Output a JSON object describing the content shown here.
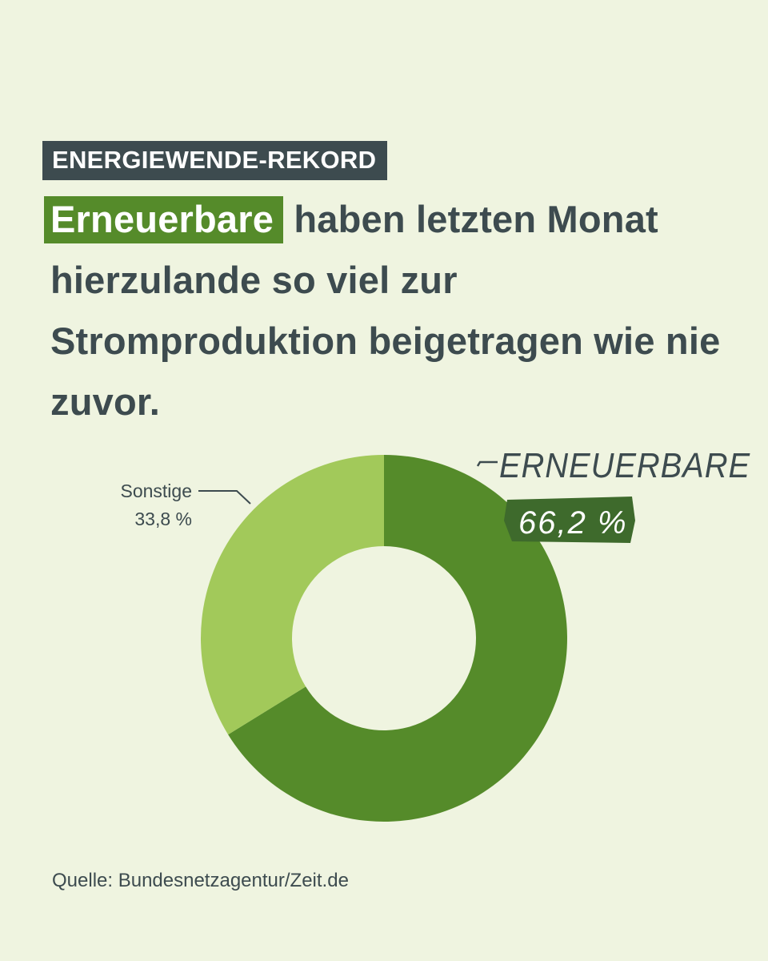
{
  "chart_data": {
    "type": "donut",
    "kicker": "ENERGIEWENDE-REKORD",
    "title_highlight": "Erneuerbare",
    "title": "haben letzten Monat hierzulande so viel zur Stromproduktion beigetragen wie nie zuvor.",
    "categories": [
      "ERNEUERBARE",
      "Sonstige"
    ],
    "values": [
      66.2,
      33.8
    ],
    "value_labels": [
      "66,2 %",
      "33,8 %"
    ],
    "colors": [
      "#558b2a",
      "#a2c95a"
    ],
    "source": "Quelle: Bundesnetzagentur/Zeit.de"
  }
}
